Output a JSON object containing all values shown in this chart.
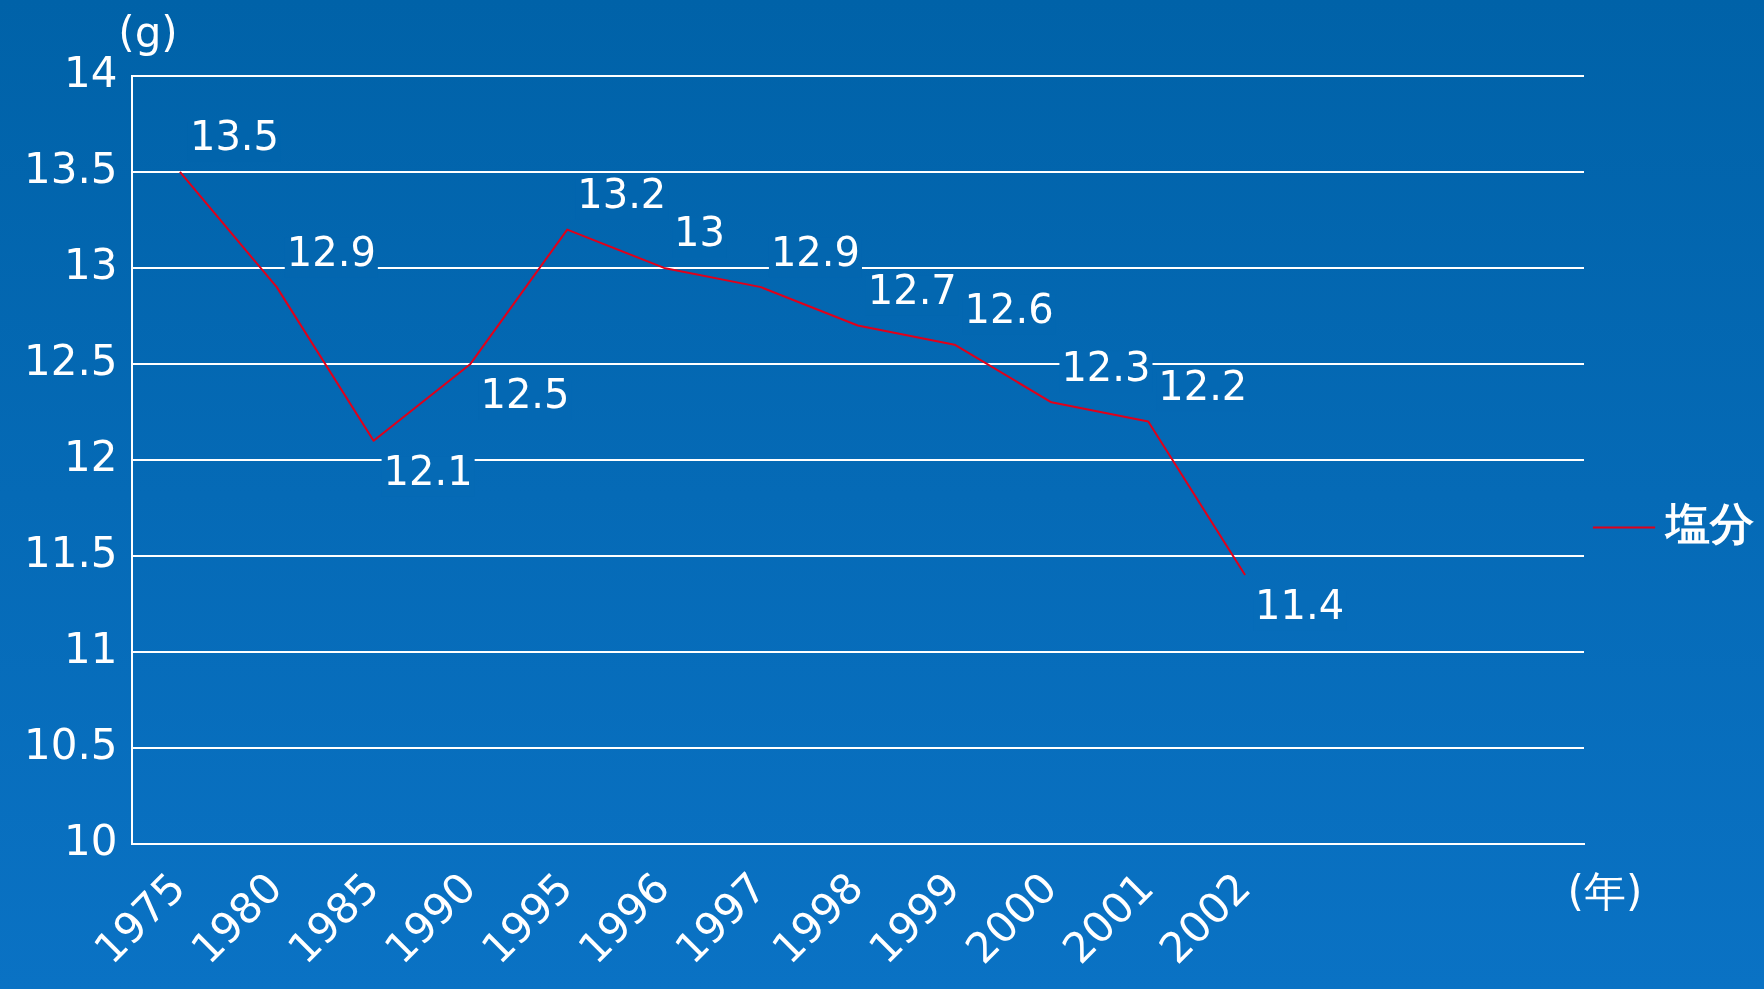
{
  "chart_data": {
    "type": "line",
    "ylabel": "(g)",
    "xlabel": "(年)",
    "categories": [
      "1975",
      "1980",
      "1985",
      "1990",
      "1995",
      "1996",
      "1997",
      "1998",
      "1999",
      "2000",
      "2001",
      "2002",
      null,
      null,
      null
    ],
    "series": [
      {
        "name": "塩分",
        "color": "#e0001a",
        "values": [
          13.5,
          12.9,
          12.1,
          12.5,
          13.2,
          13,
          12.9,
          12.7,
          12.6,
          12.3,
          12.2,
          11.4,
          null,
          null,
          null
        ]
      }
    ],
    "ylim": [
      10,
      14
    ],
    "yticks": [
      10,
      10.5,
      11,
      11.5,
      12,
      12.5,
      13,
      13.5,
      14
    ],
    "grid": "y",
    "legend": "right",
    "data_labels": true,
    "marker": "none",
    "line_style": "solid"
  }
}
